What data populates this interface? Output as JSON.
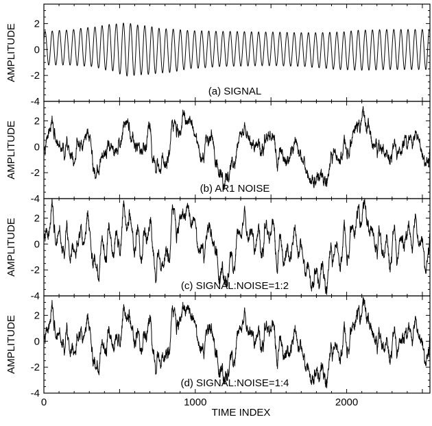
{
  "chart_data": [
    {
      "type": "line",
      "caption": "(a) SIGNAL",
      "ylabel": "AMPLITUDE",
      "xlim": [
        0,
        2550
      ],
      "ylim": [
        -4,
        3.5
      ],
      "yticks": [
        -4,
        -2,
        0,
        2
      ],
      "show_x_tick_labels": false,
      "series": [
        {
          "kind": "modulated-sinusoid",
          "period_samples": 47,
          "phase": 0.45,
          "envelope_x": [
            0,
            150,
            300,
            450,
            540,
            650,
            800,
            1000,
            1200,
            1500,
            1700,
            1800,
            1950,
            2100,
            2300,
            2550
          ],
          "envelope_amplitude": [
            1.3,
            1.35,
            1.5,
            1.8,
            2.05,
            1.9,
            1.7,
            1.45,
            1.35,
            1.3,
            1.3,
            1.35,
            1.45,
            1.55,
            1.55,
            1.55
          ],
          "envelope_offset": [
            0.1,
            0.15,
            0.2,
            0.15,
            0.0,
            -0.05,
            -0.1,
            0.0,
            0.05,
            0.05,
            0.0,
            -0.05,
            -0.1,
            -0.05,
            0.0,
            0.0
          ]
        }
      ]
    },
    {
      "type": "line",
      "caption": "(b) AR1 NOISE",
      "ylabel": "AMPLITUDE",
      "xlim": [
        0,
        2550
      ],
      "ylim": [
        -4,
        3.5
      ],
      "yticks": [
        -4,
        -2,
        0,
        2
      ],
      "show_x_tick_labels": false,
      "series": [
        {
          "kind": "ar1-noise",
          "ar1_coefficient": 0.96,
          "seed": 7,
          "range": [
            -3.3,
            3.1
          ],
          "envelope_x": [
            0,
            50,
            100,
            150,
            200,
            250,
            300,
            330,
            350,
            400,
            450,
            500,
            550,
            600,
            650,
            700,
            750,
            800,
            850,
            900,
            950,
            1000,
            1050,
            1100,
            1150,
            1200,
            1250,
            1300,
            1350,
            1400,
            1450,
            1500,
            1550,
            1600,
            1650,
            1700,
            1750,
            1800,
            1850,
            1900,
            1950,
            2000,
            2050,
            2100,
            2150,
            2200,
            2250,
            2300,
            2350,
            2400,
            2450,
            2500,
            2550
          ],
          "envelope_y": [
            -0.3,
            0.8,
            0.2,
            0.5,
            0.4,
            1.2,
            1.0,
            -1.3,
            -2.4,
            -0.5,
            0.1,
            0.9,
            1.4,
            0.3,
            -0.4,
            0.6,
            -0.5,
            -0.9,
            0.6,
            0.4,
            1.6,
            0.8,
            0.6,
            0.1,
            -0.8,
            -1.9,
            -0.6,
            1.3,
            0.8,
            0.7,
            0.3,
            0.2,
            -0.8,
            -0.7,
            0.8,
            -0.4,
            -1.2,
            -1.4,
            -0.9,
            -0.5,
            -0.1,
            -0.7,
            0.9,
            2.2,
            1.1,
            0.0,
            -0.4,
            -1.0,
            -0.3,
            0.3,
            0.9,
            -0.2,
            0.5
          ]
        }
      ]
    },
    {
      "type": "line",
      "caption": "(c) SIGNAL:NOISE=1:2",
      "ylabel": "AMPLITUDE",
      "xlim": [
        0,
        2550
      ],
      "ylim": [
        -4,
        3.5
      ],
      "yticks": [
        -4,
        -2,
        0,
        2
      ],
      "show_x_tick_labels": false,
      "series": [
        {
          "kind": "signal-plus-noise",
          "signal_weight": 0.5,
          "range": [
            -3.9,
            3.5
          ]
        }
      ]
    },
    {
      "type": "line",
      "caption": "(d) SIGNAL:NOISE=1:4",
      "ylabel": "AMPLITUDE",
      "xlabel": "TIME INDEX",
      "xlim": [
        0,
        2550
      ],
      "ylim": [
        -4,
        3.5
      ],
      "yticks": [
        -4,
        -2,
        0,
        2
      ],
      "xticks": [
        0,
        1000,
        2000
      ],
      "show_x_tick_labels": true,
      "series": [
        {
          "kind": "signal-plus-noise",
          "signal_weight": 0.25,
          "range": [
            -3.6,
            3.4
          ]
        }
      ]
    }
  ]
}
